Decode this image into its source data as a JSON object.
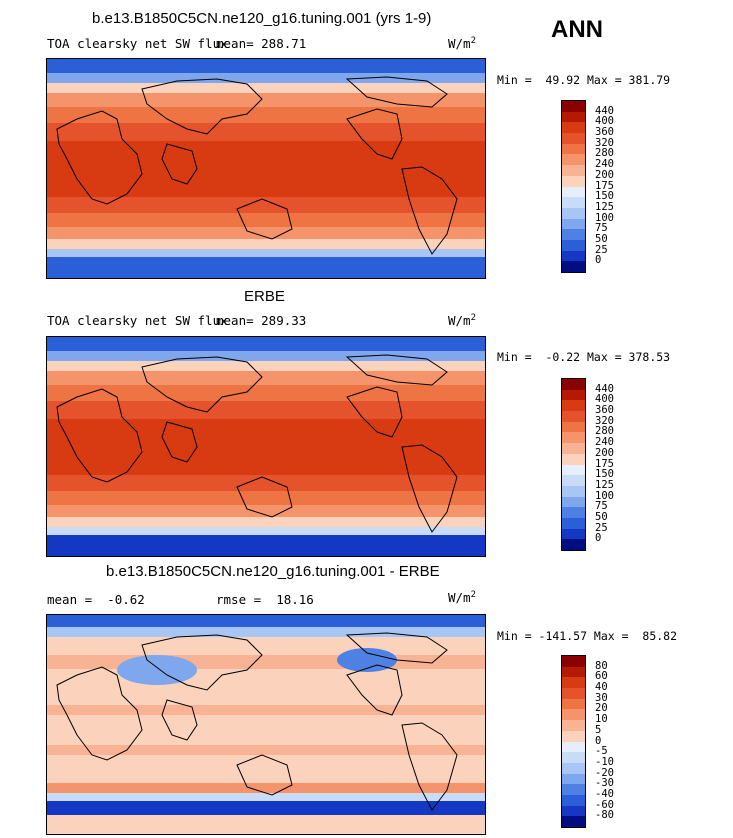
{
  "annotation": "ANN",
  "panels": [
    {
      "title": "b.e13.B1850C5CN.ne120_g16.tuning.001 (yrs 1-9)",
      "left_label": "TOA clearsky net SW flux",
      "mean_label": "mean= 288.71",
      "unit": "W/m",
      "unit_sup": "2",
      "minmax": "Min =  49.92 Max = 381.79",
      "colorbar": {
        "labels": [
          "440",
          "400",
          "360",
          "320",
          "280",
          "240",
          "200",
          "175",
          "150",
          "125",
          "100",
          "75",
          "50",
          "25",
          "0"
        ],
        "colors": [
          "#8b0000",
          "#b51a00",
          "#d83a12",
          "#e4532b",
          "#ee7444",
          "#f5946a",
          "#f7b393",
          "#fbd3bd",
          "#e5eefa",
          "#c9dcf7",
          "#a8c6f3",
          "#7ea7ee",
          "#4f80e3",
          "#2a5fd8",
          "#1437c4",
          "#000f80"
        ]
      }
    },
    {
      "title": "ERBE",
      "left_label": "TOA clearsky net SW flux",
      "mean_label": "mean= 289.33",
      "unit": "W/m",
      "unit_sup": "2",
      "minmax": "Min =  -0.22 Max = 378.53",
      "colorbar": {
        "labels": [
          "440",
          "400",
          "360",
          "320",
          "280",
          "240",
          "200",
          "175",
          "150",
          "125",
          "100",
          "75",
          "50",
          "25",
          "0"
        ],
        "colors": [
          "#8b0000",
          "#b51a00",
          "#d83a12",
          "#e4532b",
          "#ee7444",
          "#f5946a",
          "#f7b393",
          "#fbd3bd",
          "#e5eefa",
          "#c9dcf7",
          "#a8c6f3",
          "#7ea7ee",
          "#4f80e3",
          "#2a5fd8",
          "#1437c4",
          "#000f80"
        ]
      }
    },
    {
      "title": "b.e13.B1850C5CN.ne120_g16.tuning.001 - ERBE",
      "left_label": "mean =  -0.62",
      "mean_label": "rmse =  18.16",
      "unit": "W/m",
      "unit_sup": "2",
      "minmax": "Min = -141.57 Max =  85.82",
      "colorbar": {
        "labels": [
          "80",
          "60",
          "40",
          "30",
          "20",
          "10",
          "5",
          "0",
          "-5",
          "-10",
          "-20",
          "-30",
          "-40",
          "-60",
          "-80"
        ],
        "colors": [
          "#8b0000",
          "#b51a00",
          "#d83a12",
          "#e4532b",
          "#ee7444",
          "#f5946a",
          "#f7b393",
          "#fbd3bd",
          "#e5eefa",
          "#c9dcf7",
          "#a8c6f3",
          "#7ea7ee",
          "#4f80e3",
          "#2a5fd8",
          "#1437c4",
          "#000f80"
        ]
      }
    }
  ]
}
